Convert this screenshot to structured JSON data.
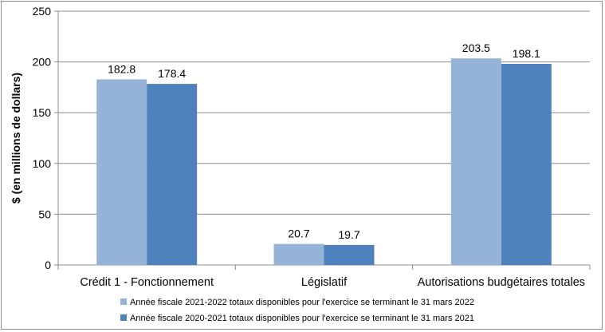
{
  "chart_data": {
    "type": "bar",
    "title": "",
    "xlabel": "",
    "ylabel": "$ (en millions de dollars)",
    "ylim": [
      0,
      250
    ],
    "yticks": [
      0,
      50,
      100,
      150,
      200,
      250
    ],
    "grid": true,
    "legend_position": "bottom",
    "categories": [
      "Crédit 1 - Fonctionnement",
      "Législatif",
      "Autorisations budgétaires totales"
    ],
    "series": [
      {
        "name": "Année fiscale 2021-2022 totaux disponibles pour l'exercice se terminant le 31 mars 2022",
        "values": [
          182.8,
          20.7,
          203.5
        ],
        "labels": [
          "182.8",
          "20.7",
          "203.5"
        ],
        "color": "#95b3d7"
      },
      {
        "name": "Année fiscale 2020-2021 totaux disponibles pour l'exercice se terminant le 31 mars 2021",
        "values": [
          178.4,
          19.7,
          198.1
        ],
        "labels": [
          "178.4",
          "19.7",
          "198.1"
        ],
        "color": "#4f81bd"
      }
    ]
  }
}
